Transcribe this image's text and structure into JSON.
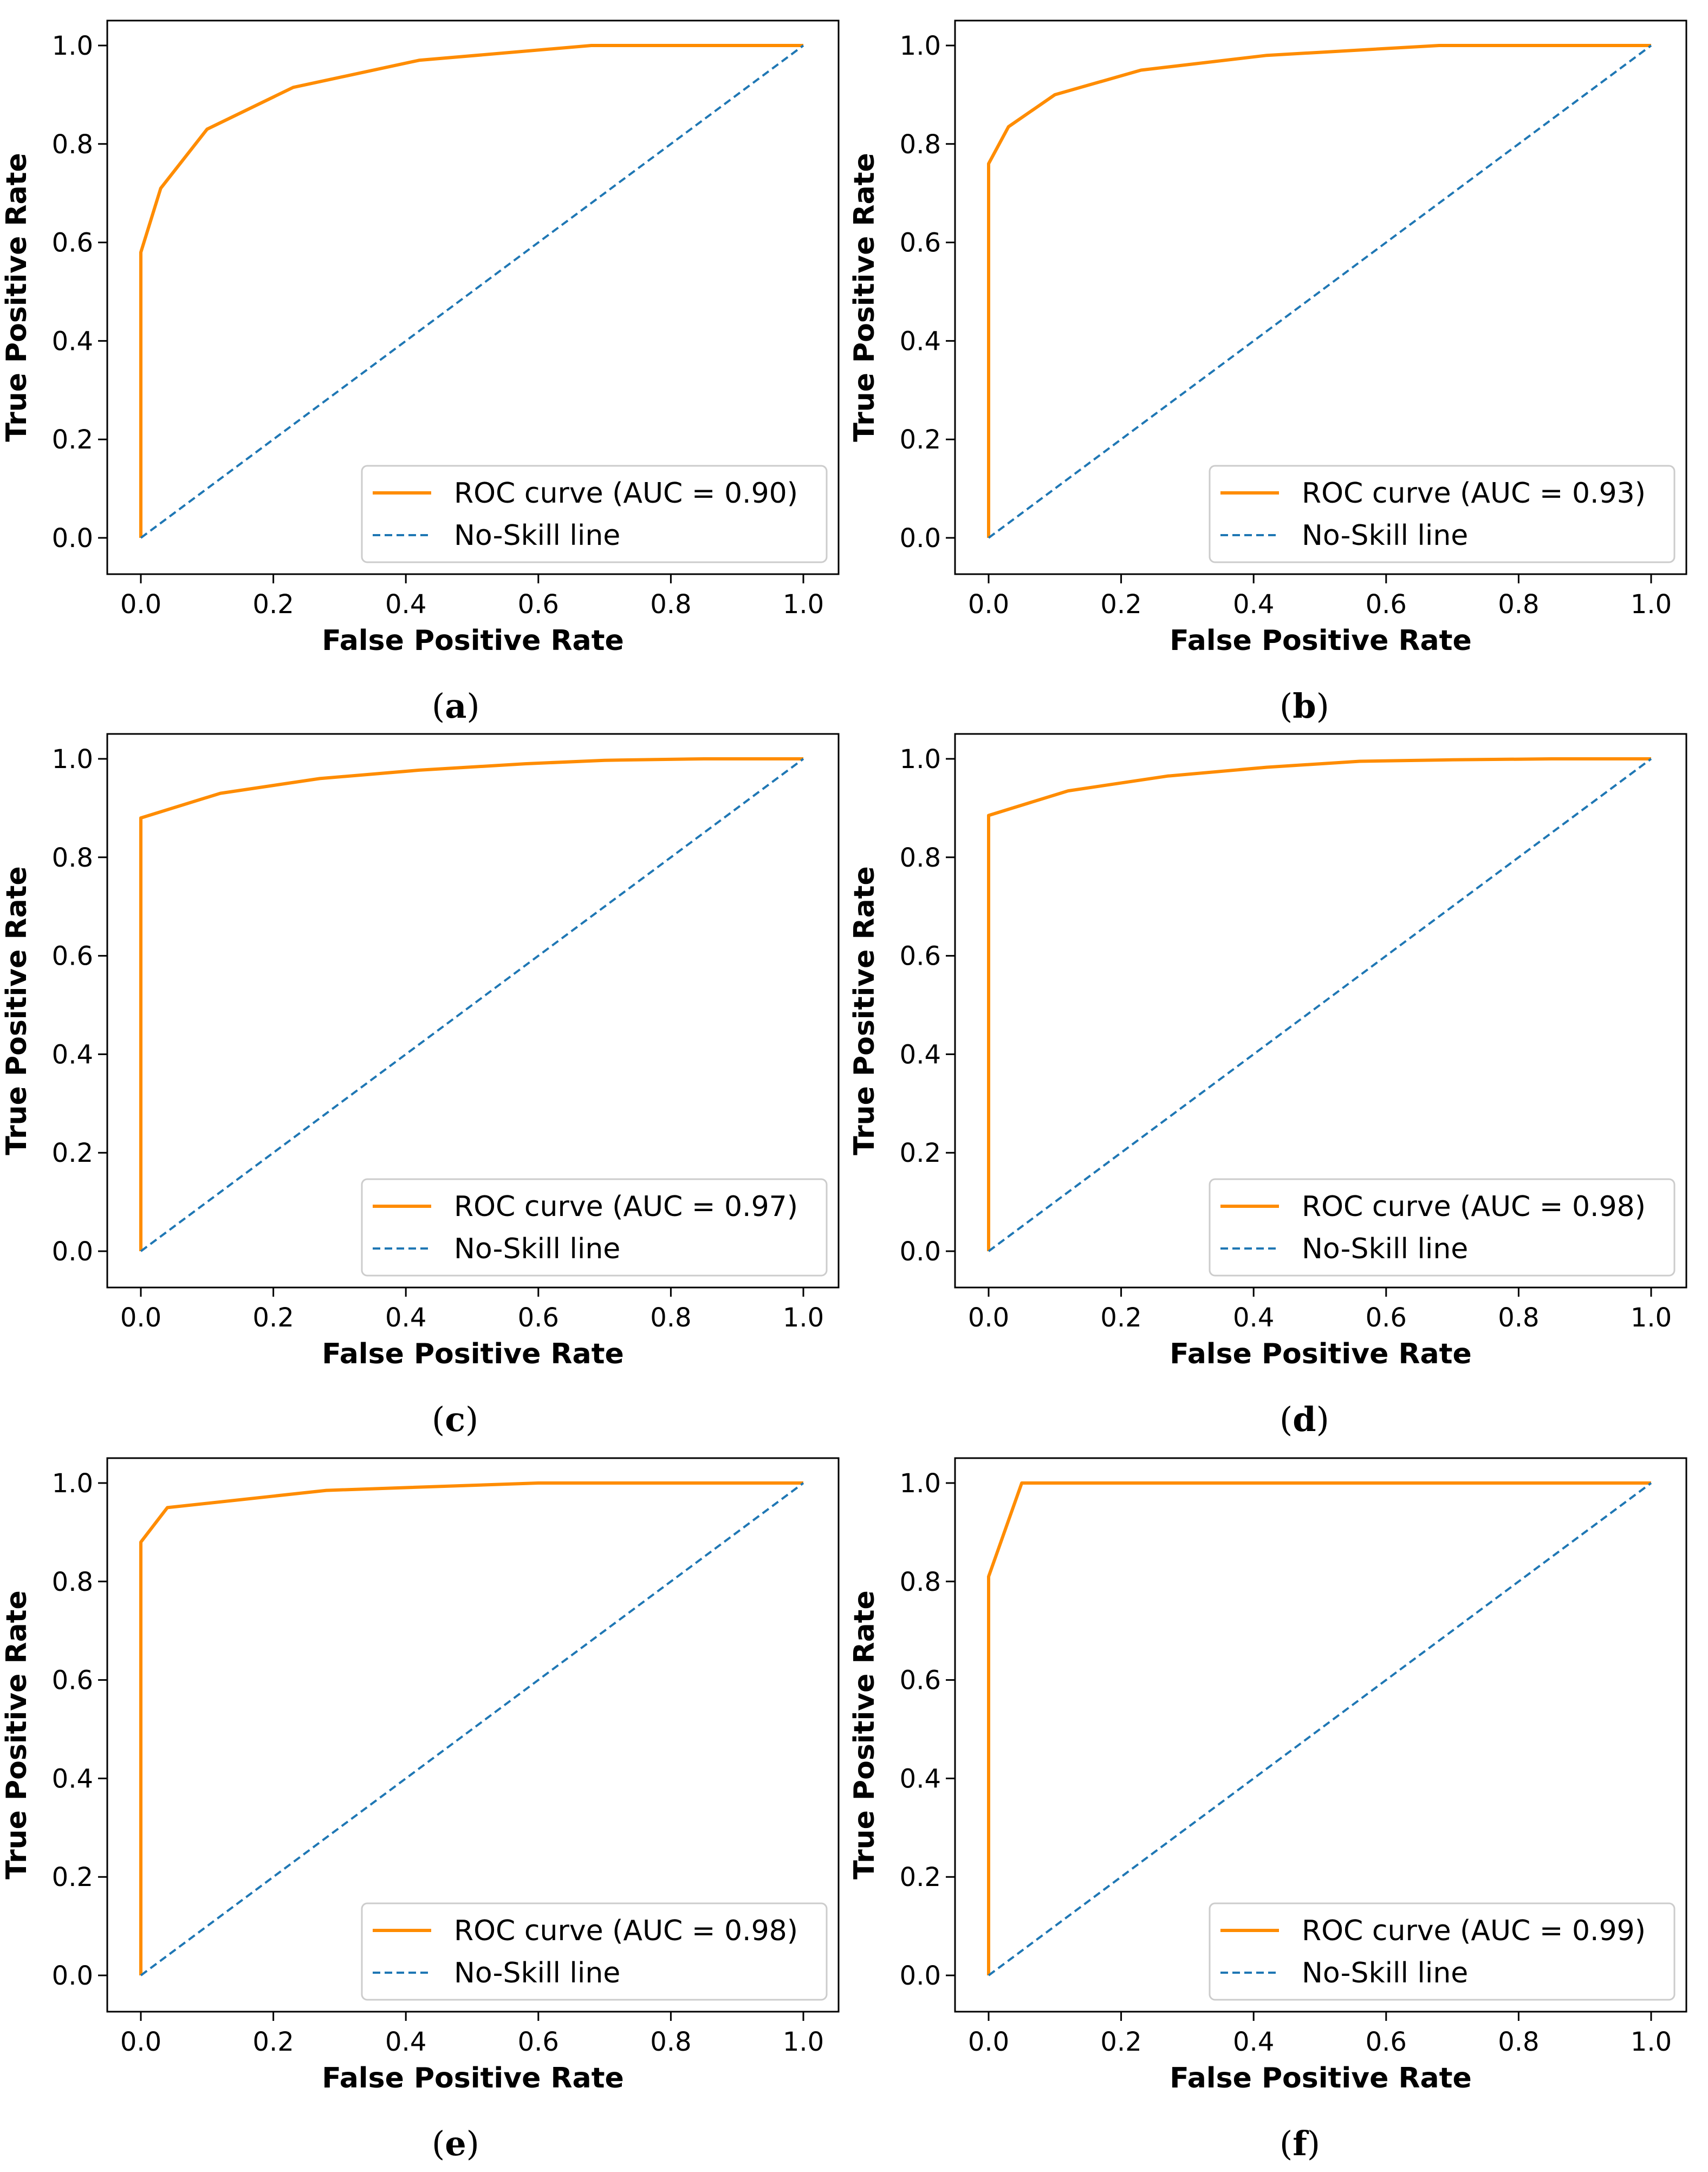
{
  "colors": {
    "roc": "#ff8c00",
    "noskill": "#1f77b4",
    "axes": "#000000",
    "legend_border": "#cccccc",
    "text": "#000000"
  },
  "chart_data": [
    {
      "type": "line",
      "panel": "a",
      "xlabel": "False Positive Rate",
      "ylabel": "True Positive Rate",
      "xlim": [
        0.0,
        1.0
      ],
      "ylim": [
        0.0,
        1.0
      ],
      "xticks": [
        "0.0",
        "0.2",
        "0.4",
        "0.6",
        "0.8",
        "1.0"
      ],
      "yticks": [
        "0.0",
        "0.2",
        "0.4",
        "0.6",
        "0.8",
        "1.0"
      ],
      "grid": false,
      "legend_position": "lower-right",
      "series": [
        {
          "name": "ROC curve (AUC = 0.90)",
          "style": "solid",
          "x": [
            0.0,
            0.0,
            0.03,
            0.1,
            0.23,
            0.42,
            0.68,
            1.0
          ],
          "y": [
            0.0,
            0.58,
            0.71,
            0.83,
            0.915,
            0.97,
            1.0,
            1.0
          ]
        },
        {
          "name": "No-Skill line",
          "style": "dashed",
          "x": [
            0.0,
            1.0
          ],
          "y": [
            0.0,
            1.0
          ]
        }
      ],
      "caption_letter": "a"
    },
    {
      "type": "line",
      "panel": "b",
      "xlabel": "False Positive Rate",
      "ylabel": "True Positive Rate",
      "xlim": [
        0.0,
        1.0
      ],
      "ylim": [
        0.0,
        1.0
      ],
      "xticks": [
        "0.0",
        "0.2",
        "0.4",
        "0.6",
        "0.8",
        "1.0"
      ],
      "yticks": [
        "0.0",
        "0.2",
        "0.4",
        "0.6",
        "0.8",
        "1.0"
      ],
      "grid": false,
      "legend_position": "lower-right",
      "series": [
        {
          "name": "ROC curve (AUC = 0.93)",
          "style": "solid",
          "x": [
            0.0,
            0.0,
            0.03,
            0.1,
            0.23,
            0.42,
            0.68,
            1.0
          ],
          "y": [
            0.0,
            0.76,
            0.835,
            0.9,
            0.95,
            0.98,
            1.0,
            1.0
          ]
        },
        {
          "name": "No-Skill line",
          "style": "dashed",
          "x": [
            0.0,
            1.0
          ],
          "y": [
            0.0,
            1.0
          ]
        }
      ],
      "caption_letter": "b"
    },
    {
      "type": "line",
      "panel": "c",
      "xlabel": "False Positive Rate",
      "ylabel": "True Positive Rate",
      "xlim": [
        0.0,
        1.0
      ],
      "ylim": [
        0.0,
        1.0
      ],
      "xticks": [
        "0.0",
        "0.2",
        "0.4",
        "0.6",
        "0.8",
        "1.0"
      ],
      "yticks": [
        "0.0",
        "0.2",
        "0.4",
        "0.6",
        "0.8",
        "1.0"
      ],
      "grid": false,
      "legend_position": "lower-right",
      "series": [
        {
          "name": "ROC curve (AUC = 0.97)",
          "style": "solid",
          "x": [
            0.0,
            0.0,
            0.12,
            0.27,
            0.42,
            0.58,
            0.7,
            0.85,
            1.0
          ],
          "y": [
            0.0,
            0.88,
            0.93,
            0.96,
            0.977,
            0.99,
            0.997,
            1.0,
            1.0
          ]
        },
        {
          "name": "No-Skill line",
          "style": "dashed",
          "x": [
            0.0,
            1.0
          ],
          "y": [
            0.0,
            1.0
          ]
        }
      ],
      "caption_letter": "c"
    },
    {
      "type": "line",
      "panel": "d",
      "xlabel": "False Positive Rate",
      "ylabel": "True Positive Rate",
      "xlim": [
        0.0,
        1.0
      ],
      "ylim": [
        0.0,
        1.0
      ],
      "xticks": [
        "0.0",
        "0.2",
        "0.4",
        "0.6",
        "0.8",
        "1.0"
      ],
      "yticks": [
        "0.0",
        "0.2",
        "0.4",
        "0.6",
        "0.8",
        "1.0"
      ],
      "grid": false,
      "legend_position": "lower-right",
      "series": [
        {
          "name": "ROC curve (AUC = 0.98)",
          "style": "solid",
          "x": [
            0.0,
            0.0,
            0.12,
            0.27,
            0.42,
            0.56,
            0.7,
            0.85,
            1.0
          ],
          "y": [
            0.0,
            0.885,
            0.935,
            0.965,
            0.983,
            0.995,
            0.998,
            1.0,
            1.0
          ]
        },
        {
          "name": "No-Skill line",
          "style": "dashed",
          "x": [
            0.0,
            1.0
          ],
          "y": [
            0.0,
            1.0
          ]
        }
      ],
      "caption_letter": "d"
    },
    {
      "type": "line",
      "panel": "e",
      "xlabel": "False Positive Rate",
      "ylabel": "True Positive Rate",
      "xlim": [
        0.0,
        1.0
      ],
      "ylim": [
        0.0,
        1.0
      ],
      "xticks": [
        "0.0",
        "0.2",
        "0.4",
        "0.6",
        "0.8",
        "1.0"
      ],
      "yticks": [
        "0.0",
        "0.2",
        "0.4",
        "0.6",
        "0.8",
        "1.0"
      ],
      "grid": false,
      "legend_position": "lower-right",
      "series": [
        {
          "name": "ROC curve (AUC = 0.98)",
          "style": "solid",
          "x": [
            0.0,
            0.0,
            0.04,
            0.28,
            0.6,
            1.0
          ],
          "y": [
            0.0,
            0.88,
            0.95,
            0.985,
            1.0,
            1.0
          ]
        },
        {
          "name": "No-Skill line",
          "style": "dashed",
          "x": [
            0.0,
            1.0
          ],
          "y": [
            0.0,
            1.0
          ]
        }
      ],
      "caption_letter": "e"
    },
    {
      "type": "line",
      "panel": "f",
      "xlabel": "False Positive Rate",
      "ylabel": "True Positive Rate",
      "xlim": [
        0.0,
        1.0
      ],
      "ylim": [
        0.0,
        1.0
      ],
      "xticks": [
        "0.0",
        "0.2",
        "0.4",
        "0.6",
        "0.8",
        "1.0"
      ],
      "yticks": [
        "0.0",
        "0.2",
        "0.4",
        "0.6",
        "0.8",
        "1.0"
      ],
      "grid": false,
      "legend_position": "lower-right",
      "series": [
        {
          "name": "ROC curve (AUC = 0.99)",
          "style": "solid",
          "x": [
            0.0,
            0.0,
            0.05,
            1.0
          ],
          "y": [
            0.0,
            0.81,
            1.0,
            1.0
          ]
        },
        {
          "name": "No-Skill line",
          "style": "dashed",
          "x": [
            0.0,
            1.0
          ],
          "y": [
            0.0,
            1.0
          ]
        }
      ],
      "caption_letter": "f"
    }
  ],
  "caption_open": "(",
  "caption_close": ")"
}
